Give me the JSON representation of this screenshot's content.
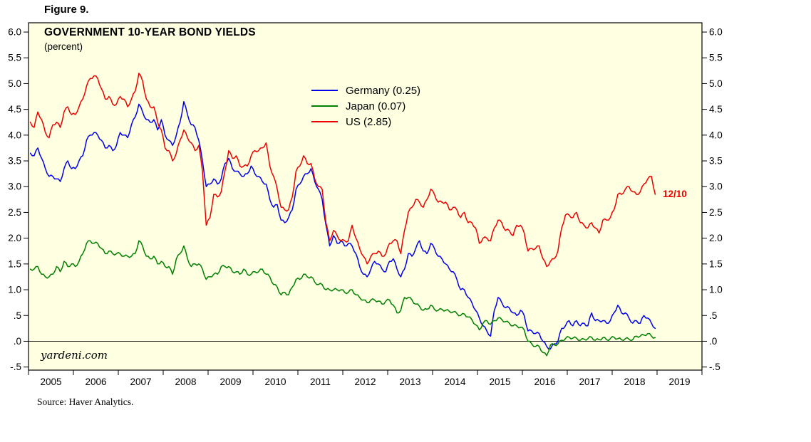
{
  "figure_label": "Figure 9.",
  "source_note": "Source: Haver Analytics.",
  "watermark": "yardeni.com",
  "colors": {
    "plot_background": "#FFFFE1",
    "axis": "#000000",
    "germany": "#0000EE",
    "japan": "#008000",
    "us": "#EE0000"
  },
  "chart_data": {
    "type": "line",
    "title": "GOVERNMENT 10-YEAR BOND YIELDS",
    "subtitle": "(percent)",
    "xlabel": "",
    "ylabel": "",
    "xlim": [
      2005,
      2020
    ],
    "ylim": [
      -0.5,
      6.0
    ],
    "ytick_step": 0.5,
    "grid": false,
    "legend_position": "inside-top-center",
    "plot_background": "#FFFFE1",
    "zero_line": true,
    "ytick_labels_top_to_bottom": [
      "6.0",
      "5.5",
      "5.0",
      "4.5",
      "4.0",
      "3.5",
      "3.0",
      "2.5",
      "2.0",
      "1.5",
      "1.0",
      ".5",
      ".0",
      "-.5"
    ],
    "xtick_labels": [
      "2005",
      "2006",
      "2007",
      "2008",
      "2009",
      "2010",
      "2011",
      "2012",
      "2013",
      "2014",
      "2015",
      "2016",
      "2017",
      "2018",
      "2019"
    ],
    "x_monthly_start": 2005.0,
    "x_monthly_end": 2018.96,
    "annotation": {
      "text": "12/10",
      "x": 2019.12,
      "y": 2.85,
      "color": "#EE0000"
    },
    "series": [
      {
        "name": "Germany (0.25)",
        "latest_value": 0.25,
        "color": "#0000EE",
        "values": [
          3.65,
          3.6,
          3.75,
          3.55,
          3.35,
          3.2,
          3.2,
          3.15,
          3.1,
          3.35,
          3.5,
          3.35,
          3.35,
          3.5,
          3.6,
          3.9,
          4.0,
          4.05,
          4.0,
          3.9,
          3.75,
          3.8,
          3.7,
          3.8,
          4.05,
          4.0,
          3.95,
          4.2,
          4.35,
          4.6,
          4.45,
          4.3,
          4.25,
          4.3,
          4.1,
          4.3,
          4.0,
          3.9,
          3.8,
          4.0,
          4.25,
          4.65,
          4.4,
          4.2,
          4.15,
          3.9,
          3.5,
          3.0,
          3.05,
          3.15,
          3.05,
          3.15,
          3.45,
          3.55,
          3.35,
          3.3,
          3.25,
          3.2,
          3.25,
          3.4,
          3.25,
          3.2,
          3.1,
          3.05,
          2.75,
          2.6,
          2.65,
          2.35,
          2.3,
          2.4,
          2.55,
          2.95,
          3.05,
          3.2,
          3.25,
          3.35,
          3.1,
          2.95,
          2.75,
          2.25,
          1.85,
          2.05,
          1.9,
          1.95,
          1.85,
          1.9,
          1.85,
          1.7,
          1.45,
          1.3,
          1.25,
          1.4,
          1.55,
          1.5,
          1.4,
          1.35,
          1.55,
          1.6,
          1.4,
          1.25,
          1.4,
          1.7,
          1.65,
          1.8,
          1.95,
          1.75,
          1.7,
          1.9,
          1.8,
          1.65,
          1.6,
          1.5,
          1.4,
          1.35,
          1.2,
          1.0,
          1.0,
          0.85,
          0.75,
          0.6,
          0.45,
          0.3,
          0.2,
          0.1,
          0.6,
          0.85,
          0.75,
          0.65,
          0.65,
          0.55,
          0.5,
          0.6,
          0.5,
          0.2,
          0.2,
          0.15,
          0.15,
          0.0,
          -0.1,
          -0.15,
          -0.05,
          0.0,
          0.25,
          0.3,
          0.4,
          0.3,
          0.4,
          0.3,
          0.35,
          0.3,
          0.55,
          0.4,
          0.4,
          0.4,
          0.35,
          0.4,
          0.55,
          0.7,
          0.55,
          0.55,
          0.45,
          0.35,
          0.4,
          0.35,
          0.5,
          0.45,
          0.35,
          0.25
        ]
      },
      {
        "name": "Japan (0.07)",
        "latest_value": 0.07,
        "color": "#008000",
        "values": [
          1.4,
          1.4,
          1.45,
          1.3,
          1.25,
          1.25,
          1.3,
          1.45,
          1.35,
          1.55,
          1.45,
          1.5,
          1.45,
          1.55,
          1.7,
          1.9,
          1.95,
          1.9,
          1.9,
          1.8,
          1.7,
          1.75,
          1.7,
          1.7,
          1.7,
          1.65,
          1.65,
          1.65,
          1.7,
          1.95,
          1.85,
          1.65,
          1.6,
          1.65,
          1.5,
          1.55,
          1.45,
          1.45,
          1.3,
          1.6,
          1.7,
          1.85,
          1.6,
          1.45,
          1.5,
          1.5,
          1.4,
          1.2,
          1.25,
          1.3,
          1.3,
          1.45,
          1.45,
          1.45,
          1.35,
          1.35,
          1.3,
          1.4,
          1.3,
          1.3,
          1.35,
          1.35,
          1.4,
          1.3,
          1.25,
          1.1,
          1.05,
          0.9,
          0.95,
          0.9,
          1.05,
          1.2,
          1.2,
          1.3,
          1.25,
          1.25,
          1.15,
          1.1,
          1.1,
          1.0,
          1.0,
          1.0,
          1.0,
          1.0,
          0.95,
          0.95,
          1.0,
          0.9,
          0.85,
          0.8,
          0.75,
          0.8,
          0.8,
          0.78,
          0.72,
          0.78,
          0.8,
          0.7,
          0.55,
          0.6,
          0.85,
          0.85,
          0.8,
          0.72,
          0.68,
          0.6,
          0.62,
          0.7,
          0.62,
          0.6,
          0.62,
          0.6,
          0.58,
          0.57,
          0.54,
          0.5,
          0.53,
          0.47,
          0.42,
          0.32,
          0.22,
          0.35,
          0.4,
          0.33,
          0.4,
          0.45,
          0.42,
          0.38,
          0.35,
          0.3,
          0.3,
          0.27,
          0.22,
          0.0,
          -0.05,
          -0.1,
          -0.1,
          -0.22,
          -0.28,
          -0.07,
          -0.07,
          -0.05,
          0.02,
          0.05,
          0.08,
          0.06,
          0.06,
          0.02,
          0.04,
          0.05,
          0.08,
          0.02,
          0.03,
          0.07,
          0.03,
          0.05,
          0.08,
          0.05,
          0.03,
          0.05,
          0.04,
          0.03,
          0.1,
          0.1,
          0.12,
          0.15,
          0.1,
          0.07
        ]
      },
      {
        "name": "US (2.85)",
        "latest_value": 2.85,
        "color": "#EE0000",
        "values": [
          4.25,
          4.15,
          4.45,
          4.3,
          4.05,
          3.95,
          4.2,
          4.25,
          4.15,
          4.45,
          4.55,
          4.4,
          4.4,
          4.55,
          4.7,
          4.95,
          5.1,
          5.15,
          5.1,
          4.9,
          4.7,
          4.75,
          4.6,
          4.6,
          4.75,
          4.7,
          4.55,
          4.7,
          4.85,
          5.2,
          5.05,
          4.7,
          4.55,
          4.55,
          4.25,
          4.1,
          3.75,
          3.7,
          3.5,
          3.65,
          3.9,
          4.1,
          3.95,
          3.85,
          3.7,
          3.8,
          3.3,
          2.25,
          2.4,
          2.85,
          2.8,
          2.9,
          3.3,
          3.7,
          3.55,
          3.6,
          3.4,
          3.4,
          3.4,
          3.6,
          3.7,
          3.7,
          3.75,
          3.85,
          3.4,
          3.2,
          2.95,
          2.6,
          2.55,
          2.55,
          2.8,
          3.3,
          3.4,
          3.6,
          3.45,
          3.45,
          3.15,
          3.0,
          2.95,
          2.3,
          1.95,
          2.15,
          2.05,
          1.95,
          1.95,
          1.95,
          2.25,
          2.0,
          1.8,
          1.65,
          1.5,
          1.65,
          1.7,
          1.75,
          1.65,
          1.7,
          1.9,
          1.95,
          1.95,
          1.7,
          2.15,
          2.5,
          2.6,
          2.75,
          2.7,
          2.6,
          2.75,
          2.95,
          2.85,
          2.7,
          2.7,
          2.7,
          2.55,
          2.6,
          2.55,
          2.4,
          2.5,
          2.3,
          2.3,
          2.2,
          1.9,
          2.0,
          2.0,
          1.95,
          2.2,
          2.35,
          2.3,
          2.15,
          2.15,
          2.05,
          2.25,
          2.25,
          2.1,
          1.75,
          1.8,
          1.8,
          1.85,
          1.6,
          1.45,
          1.55,
          1.6,
          1.75,
          2.2,
          2.45,
          2.45,
          2.4,
          2.5,
          2.3,
          2.25,
          2.2,
          2.3,
          2.2,
          2.1,
          2.35,
          2.35,
          2.4,
          2.55,
          2.85,
          2.85,
          2.95,
          3.0,
          2.9,
          2.85,
          2.9,
          3.05,
          3.15,
          3.2,
          2.85
        ]
      }
    ]
  }
}
